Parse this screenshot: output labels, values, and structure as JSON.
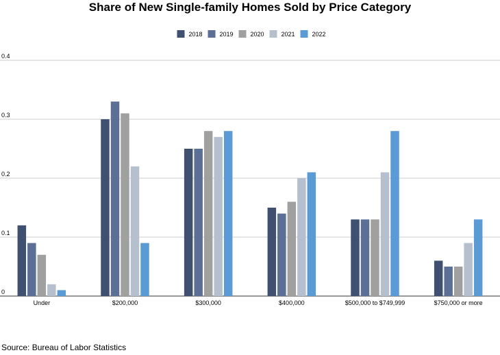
{
  "chart_data": {
    "type": "bar",
    "title": "Share of New Single-family Homes Sold by Price Category",
    "xlabel": "",
    "ylabel": "",
    "categories": [
      "Under",
      "$200,000",
      "$300,000",
      "$400,000",
      "$500,000 to $749,999",
      "$750,000 or more"
    ],
    "series": [
      {
        "name": "2018",
        "color": "#3f5070",
        "values": [
          0.12,
          0.3,
          0.25,
          0.15,
          0.13,
          0.06
        ]
      },
      {
        "name": "2019",
        "color": "#5c6f95",
        "values": [
          0.09,
          0.33,
          0.25,
          0.14,
          0.13,
          0.05
        ]
      },
      {
        "name": "2020",
        "color": "#a0a0a0",
        "values": [
          0.07,
          0.31,
          0.28,
          0.16,
          0.13,
          0.05
        ]
      },
      {
        "name": "2021",
        "color": "#b6bfcd",
        "values": [
          0.02,
          0.22,
          0.27,
          0.2,
          0.21,
          0.09
        ]
      },
      {
        "name": "2022",
        "color": "#5b9bd5",
        "values": [
          0.01,
          0.09,
          0.28,
          0.21,
          0.28,
          0.13
        ]
      }
    ],
    "ylim": [
      0,
      0.4
    ],
    "yticks": [
      "0",
      "0.1",
      "0.2",
      "0.3",
      "0.4"
    ],
    "grid": true,
    "legend": "top-center"
  },
  "source": "Source: Bureau of Labor Statistics"
}
